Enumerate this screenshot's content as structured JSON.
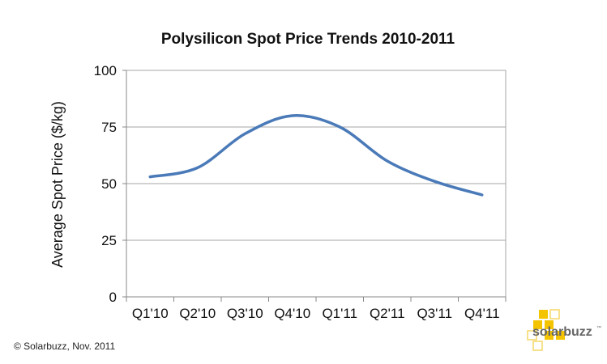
{
  "chart_data": {
    "type": "line",
    "title": "Polysilicon Spot Price Trends 2010-2011",
    "xlabel": "",
    "ylabel": "Average Spot Price ($/kg)",
    "categories": [
      "Q1'10",
      "Q2'10",
      "Q3'10",
      "Q4'10",
      "Q1'11",
      "Q2'11",
      "Q3'11",
      "Q4'11"
    ],
    "series": [
      {
        "values": [
          53,
          57,
          72,
          80,
          75,
          60,
          51,
          45
        ],
        "color": "#4a7ab8"
      }
    ],
    "ylim": [
      0,
      100
    ],
    "yticks": [
      0,
      25,
      50,
      75,
      100
    ],
    "grid": true,
    "smooth": true,
    "legend": "none"
  },
  "credit": "© Solarbuzz, Nov. 2011",
  "logo": {
    "text": "solarbuzz",
    "tm": "™",
    "color": "#f5c400"
  }
}
